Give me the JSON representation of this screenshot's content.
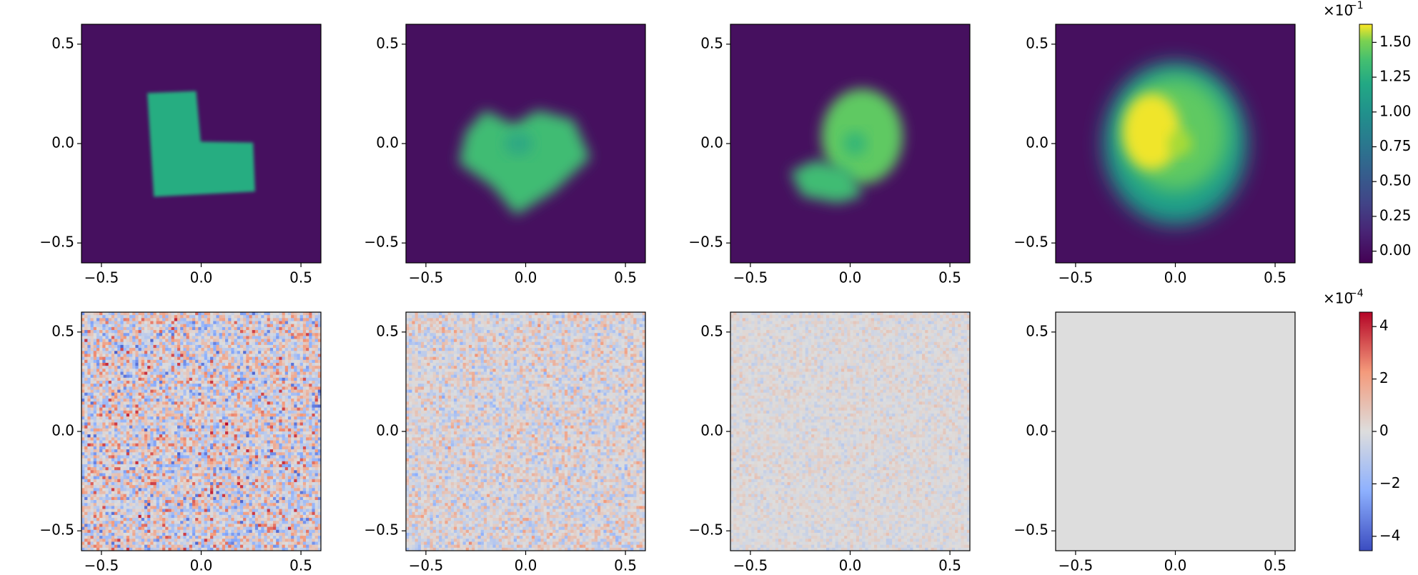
{
  "chart_data": [
    {
      "type": "heatmap",
      "colormap": "viridis",
      "xlim": [
        -0.6,
        0.6
      ],
      "ylim": [
        -0.6,
        0.6
      ],
      "xticks": [
        {
          "value": -0.5,
          "label": "−0.5"
        },
        {
          "value": 0,
          "label": "0.0"
        },
        0.5
      ],
      "yticks": [
        {
          "value": -0.5,
          "label": "−0.5"
        },
        {
          "value": 0,
          "label": "0.0"
        },
        0.5
      ]
    },
    {
      "type": "heatmap",
      "colormap": "viridis",
      "xlim": [
        -0.6,
        0.6
      ],
      "ylim": [
        -0.6,
        0.6
      ],
      "xticks": [
        {
          "value": -0.5,
          "label": "−0.5"
        },
        {
          "value": 0,
          "label": "0.0"
        },
        0.5
      ],
      "yticks": [
        {
          "value": -0.5,
          "label": "−0.5"
        },
        {
          "value": 0,
          "label": "0.0"
        },
        0.5
      ]
    },
    {
      "type": "heatmap",
      "colormap": "viridis",
      "xlim": [
        -0.6,
        0.6
      ],
      "ylim": [
        -0.6,
        0.6
      ],
      "xticks": [
        {
          "value": -0.5,
          "label": "−0.5"
        },
        {
          "value": 0,
          "label": "0.0"
        },
        0.5
      ],
      "yticks": [
        {
          "value": -0.5,
          "label": "−0.5"
        },
        {
          "value": 0,
          "label": "0.0"
        },
        0.5
      ]
    },
    {
      "type": "heatmap",
      "colormap": "viridis",
      "xlim": [
        -0.6,
        0.6
      ],
      "ylim": [
        -0.6,
        0.6
      ],
      "xticks": [
        {
          "value": -0.5,
          "label": "−0.5"
        },
        {
          "value": 0,
          "label": "0.0"
        },
        0.5
      ],
      "yticks": [
        {
          "value": -0.5,
          "label": "−0.5"
        },
        {
          "value": 0,
          "label": "0.0"
        },
        0.5
      ]
    },
    {
      "type": "heatmap",
      "colormap": "coolwarm",
      "xlim": [
        -0.6,
        0.6
      ],
      "ylim": [
        -0.6,
        0.6
      ],
      "xticks": [
        {
          "value": -0.5,
          "label": "−0.5"
        },
        {
          "value": 0,
          "label": "0.0"
        },
        0.5
      ],
      "yticks": [
        {
          "value": -0.5,
          "label": "−0.5"
        },
        {
          "value": 0,
          "label": "0.0"
        },
        0.5
      ]
    },
    {
      "type": "heatmap",
      "colormap": "coolwarm",
      "xlim": [
        -0.6,
        0.6
      ],
      "ylim": [
        -0.6,
        0.6
      ],
      "xticks": [
        {
          "value": -0.5,
          "label": "−0.5"
        },
        {
          "value": 0,
          "label": "0.0"
        },
        0.5
      ],
      "yticks": [
        {
          "value": -0.5,
          "label": "−0.5"
        },
        {
          "value": 0,
          "label": "0.0"
        },
        0.5
      ]
    },
    {
      "type": "heatmap",
      "colormap": "coolwarm",
      "xlim": [
        -0.6,
        0.6
      ],
      "ylim": [
        -0.6,
        0.6
      ],
      "xticks": [
        {
          "value": -0.5,
          "label": "−0.5"
        },
        {
          "value": 0,
          "label": "0.0"
        },
        0.5
      ],
      "yticks": [
        {
          "value": -0.5,
          "label": "−0.5"
        },
        {
          "value": 0,
          "label": "0.0"
        },
        0.5
      ]
    },
    {
      "type": "heatmap",
      "colormap": "coolwarm",
      "xlim": [
        -0.6,
        0.6
      ],
      "ylim": [
        -0.6,
        0.6
      ],
      "xticks": [
        {
          "value": -0.5,
          "label": "−0.5"
        },
        {
          "value": 0,
          "label": "0.0"
        },
        0.5
      ],
      "yticks": [
        {
          "value": -0.5,
          "label": "−0.5"
        },
        {
          "value": 0,
          "label": "0.0"
        },
        0.5
      ]
    },
    {
      "type": "colorbar",
      "colormap": "viridis",
      "ylim": [
        -0.084,
        1.63
      ],
      "yticks": [
        {
          "value": 0,
          "label": "0.00"
        },
        {
          "value": 0.25,
          "label": "0.25"
        },
        {
          "value": 0.5,
          "label": "0.50"
        },
        {
          "value": 0.75,
          "label": "0.75"
        },
        {
          "value": 1,
          "label": "1.00"
        },
        {
          "value": 1.25,
          "label": "1.25"
        },
        {
          "value": 1.5,
          "label": "1.50"
        }
      ],
      "offset_base": "×10",
      "offset_exponent": "−1"
    },
    {
      "type": "colorbar",
      "colormap": "coolwarm",
      "ylim": [
        -4.55,
        4.55
      ],
      "yticks": [
        {
          "value": -4,
          "label": "−4"
        },
        {
          "value": -2,
          "label": "−2"
        },
        0,
        2,
        4
      ],
      "offset_base": "×10",
      "offset_exponent": "−4"
    }
  ]
}
